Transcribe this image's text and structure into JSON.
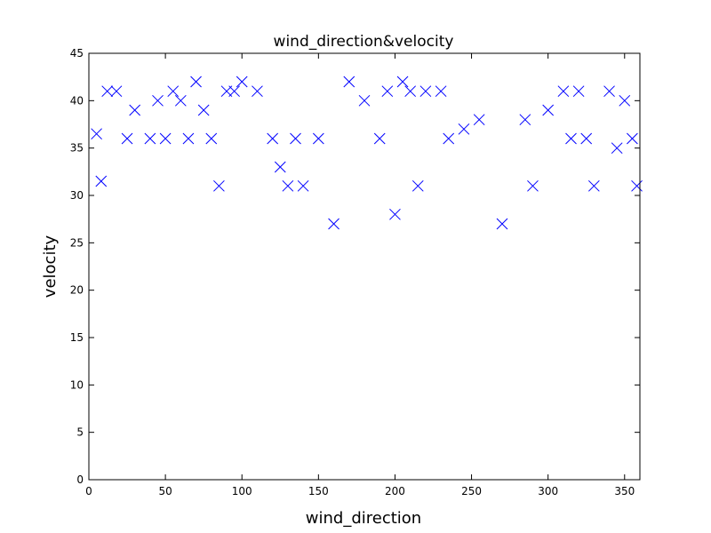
{
  "chart_data": {
    "type": "scatter",
    "title": "wind_direction&velocity",
    "xlabel": "wind_direction",
    "ylabel": "velocity",
    "xlim": [
      0,
      360
    ],
    "ylim": [
      0,
      45
    ],
    "xticks": [
      "0",
      "50",
      "100",
      "150",
      "200",
      "250",
      "300",
      "350"
    ],
    "yticks": [
      "0",
      "5",
      "10",
      "15",
      "20",
      "25",
      "30",
      "35",
      "40",
      "45"
    ],
    "grid": false,
    "legend": "none",
    "marker": "x",
    "color": "#0000ff",
    "series": [
      {
        "values": [
          {
            "x": 5,
            "y": 36.5
          },
          {
            "x": 8,
            "y": 31.5
          },
          {
            "x": 12,
            "y": 41
          },
          {
            "x": 18,
            "y": 41
          },
          {
            "x": 25,
            "y": 36
          },
          {
            "x": 30,
            "y": 39
          },
          {
            "x": 40,
            "y": 36
          },
          {
            "x": 45,
            "y": 40
          },
          {
            "x": 50,
            "y": 36
          },
          {
            "x": 55,
            "y": 41
          },
          {
            "x": 60,
            "y": 40
          },
          {
            "x": 65,
            "y": 36
          },
          {
            "x": 70,
            "y": 42
          },
          {
            "x": 75,
            "y": 39
          },
          {
            "x": 80,
            "y": 36
          },
          {
            "x": 85,
            "y": 31
          },
          {
            "x": 90,
            "y": 41
          },
          {
            "x": 95,
            "y": 41
          },
          {
            "x": 100,
            "y": 42
          },
          {
            "x": 110,
            "y": 41
          },
          {
            "x": 120,
            "y": 36
          },
          {
            "x": 125,
            "y": 33
          },
          {
            "x": 130,
            "y": 31
          },
          {
            "x": 135,
            "y": 36
          },
          {
            "x": 140,
            "y": 31
          },
          {
            "x": 150,
            "y": 36
          },
          {
            "x": 160,
            "y": 27
          },
          {
            "x": 170,
            "y": 42
          },
          {
            "x": 180,
            "y": 40
          },
          {
            "x": 190,
            "y": 36
          },
          {
            "x": 195,
            "y": 41
          },
          {
            "x": 200,
            "y": 28
          },
          {
            "x": 205,
            "y": 42
          },
          {
            "x": 210,
            "y": 41
          },
          {
            "x": 215,
            "y": 31
          },
          {
            "x": 220,
            "y": 41
          },
          {
            "x": 230,
            "y": 41
          },
          {
            "x": 235,
            "y": 36
          },
          {
            "x": 245,
            "y": 37
          },
          {
            "x": 255,
            "y": 38
          },
          {
            "x": 270,
            "y": 27
          },
          {
            "x": 285,
            "y": 38
          },
          {
            "x": 290,
            "y": 31
          },
          {
            "x": 300,
            "y": 39
          },
          {
            "x": 310,
            "y": 41
          },
          {
            "x": 315,
            "y": 36
          },
          {
            "x": 320,
            "y": 41
          },
          {
            "x": 325,
            "y": 36
          },
          {
            "x": 330,
            "y": 31
          },
          {
            "x": 340,
            "y": 41
          },
          {
            "x": 345,
            "y": 35
          },
          {
            "x": 350,
            "y": 40
          },
          {
            "x": 355,
            "y": 36
          },
          {
            "x": 358,
            "y": 31
          }
        ]
      }
    ]
  }
}
